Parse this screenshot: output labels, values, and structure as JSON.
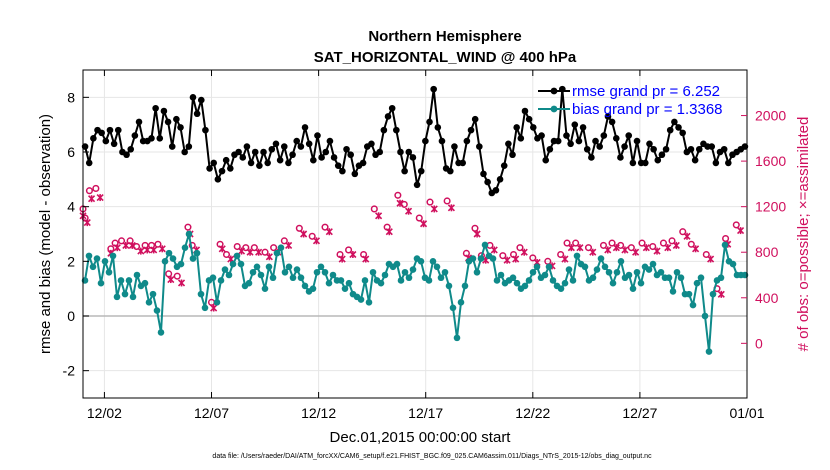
{
  "chart_data": {
    "type": "line",
    "title": "Northern Hemisphere",
    "subtitle": "SAT_HORIZONTAL_WIND @ 400 hPa",
    "xlabel": "Dec.01,2015 00:00:00 start",
    "ylabel": "rmse and bias (model - observation)",
    "y2label": "# of obs: o=possible; ×=assimilated",
    "footer": "data file: /Users/raeder/DAI/ATM_forcXX/CAM6_setup/f.e21.FHIST_BGC.f09_025.CAM6assim.011/Diags_NTrS_2015-12/obs_diag_output.nc",
    "xlim": [
      0,
      31
    ],
    "ylim": [
      -3,
      9
    ],
    "y2lim": [
      -480,
      2400
    ],
    "x_ticks": [
      1,
      6,
      11,
      16,
      21,
      26,
      31
    ],
    "x_tick_labels": [
      "12/02",
      "12/07",
      "12/12",
      "12/17",
      "12/22",
      "12/27",
      "01/01"
    ],
    "y_ticks": [
      -2,
      0,
      2,
      4,
      6,
      8
    ],
    "y2_ticks": [
      0,
      400,
      800,
      1200,
      1600,
      2000
    ],
    "reference_line": 0,
    "legend_position": "top-right",
    "colors": {
      "rmse": "#000000",
      "bias": "#0f8a8a",
      "obs": "#d0105e",
      "zero": "#b8b8b8",
      "grid": "#e6e6e6",
      "legend_text": "#0000ff"
    },
    "series": [
      {
        "name": "rmse",
        "legend": "rmse grand pr = 6.252",
        "values": [
          6.2,
          5.6,
          6.5,
          6.8,
          6.7,
          6.4,
          6.8,
          6.3,
          6.8,
          6.0,
          5.9,
          6.1,
          6.6,
          7.1,
          6.4,
          6.4,
          6.5,
          7.6,
          6.5,
          7.5,
          7.1,
          6.2,
          7.2,
          6.9,
          6.0,
          6.2,
          8.0,
          7.4,
          7.9,
          6.8,
          5.4,
          5.6,
          5.0,
          5.3,
          5.7,
          5.4,
          5.9,
          6.0,
          5.8,
          6.2,
          5.6,
          6.0,
          5.5,
          6.0,
          5.6,
          6.1,
          6.3,
          5.7,
          6.2,
          5.6,
          5.9,
          6.4,
          6.2,
          6.9,
          6.3,
          5.7,
          6.6,
          5.8,
          6.0,
          6.4,
          5.8,
          5.5,
          5.3,
          6.1,
          5.9,
          5.2,
          5.5,
          5.6,
          6.2,
          6.3,
          5.9,
          6.0,
          6.8,
          7.3,
          7.6,
          6.8,
          6.0,
          5.3,
          6.0,
          5.8,
          4.8,
          5.3,
          6.4,
          7.1,
          8.3,
          6.9,
          6.4,
          5.4,
          5.3,
          6.2,
          5.6,
          5.6,
          6.4,
          6.8,
          7.2,
          6.2,
          5.2,
          4.9,
          4.5,
          4.6,
          5.0,
          5.5,
          6.3,
          5.9,
          6.9,
          6.5,
          7.5,
          7.2,
          6.9,
          6.5,
          6.6,
          5.7,
          6.1,
          6.4,
          6.4,
          8.3,
          6.6,
          6.3,
          7.0,
          6.4,
          6.9,
          6.1,
          5.8,
          6.4,
          6.2,
          6.6,
          7.3,
          7.1,
          6.5,
          5.8,
          6.2,
          6.6,
          5.6,
          6.4,
          5.6,
          5.6,
          6.3,
          6.1,
          5.7,
          5.9,
          6.1,
          6.8,
          7.1,
          6.9,
          6.7,
          6.0,
          6.1,
          5.7,
          6.1,
          6.3,
          6.2,
          6.2,
          5.6,
          6.0,
          6.1,
          5.6,
          5.9,
          6.0,
          6.1,
          6.2
        ]
      },
      {
        "name": "bias",
        "legend": "bias grand pr = 1.3368",
        "values": [
          1.3,
          2.2,
          1.8,
          2.1,
          1.2,
          2.0,
          1.6,
          2.2,
          0.7,
          1.3,
          0.8,
          1.3,
          0.7,
          1.5,
          1.1,
          1.2,
          0.5,
          0.8,
          0.2,
          -0.6,
          2.0,
          2.3,
          2.1,
          1.8,
          1.9,
          2.5,
          3.0,
          2.1,
          2.3,
          0.8,
          0.3,
          1.3,
          1.4,
          0.5,
          1.3,
          1.7,
          1.5,
          1.9,
          2.2,
          1.9,
          1.1,
          1.2,
          1.6,
          1.8,
          1.5,
          1.0,
          1.8,
          1.4,
          2.3,
          2.5,
          1.6,
          1.8,
          1.4,
          1.7,
          1.4,
          1.1,
          0.9,
          1.0,
          1.6,
          1.8,
          1.6,
          1.2,
          1.5,
          1.3,
          1.3,
          1.0,
          1.2,
          0.8,
          0.7,
          0.6,
          1.3,
          0.5,
          1.6,
          1.3,
          1.2,
          1.5,
          1.9,
          1.8,
          1.9,
          1.3,
          1.6,
          1.4,
          1.7,
          2.1,
          2.0,
          1.4,
          1.3,
          2.0,
          1.8,
          1.4,
          1.6,
          1.1,
          0.3,
          -0.8,
          0.5,
          1.1,
          2.0,
          2.1,
          1.6,
          2.1,
          2.6,
          2.2,
          2.1,
          1.3,
          1.5,
          1.2,
          1.3,
          1.4,
          1.2,
          1.0,
          1.1,
          1.3,
          1.6,
          1.8,
          1.4,
          1.5,
          1.8,
          1.3,
          1.1,
          1.0,
          1.2,
          1.7,
          1.3,
          2.2,
          1.9,
          1.8,
          1.3,
          1.4,
          1.7,
          2.1,
          1.8,
          1.6,
          1.2,
          1.6,
          2.0,
          1.4,
          1.5,
          1.0,
          1.6,
          1.2,
          1.8,
          1.7,
          1.9,
          1.5,
          1.6,
          1.4,
          1.4,
          0.9,
          1.6,
          1.4,
          0.8,
          0.8,
          0.4,
          1.2,
          1.4,
          0.0,
          -1.3,
          0.8,
          1.3,
          1.4,
          2.6,
          2.0,
          1.9,
          1.5,
          1.5,
          1.5
        ]
      }
    ],
    "obs_possible": {
      "times": [
        0.0,
        0.1,
        0.3,
        0.6,
        1.3,
        1.5,
        1.8,
        2.2,
        2.5,
        2.9,
        3.2,
        3.5,
        4.0,
        4.4,
        4.9,
        5.1,
        6.0,
        6.4,
        6.7,
        7.2,
        7.6,
        8.0,
        8.5,
        8.9,
        9.4,
        10.1,
        10.7,
        11.3,
        12.0,
        12.4,
        13.1,
        13.6,
        14.2,
        14.7,
        15.0,
        15.7,
        16.2,
        17.0,
        17.9,
        18.3,
        18.6,
        19.0,
        19.6,
        20.1,
        20.4,
        21.0,
        21.7,
        22.3,
        22.6,
        23.0,
        23.6,
        24.3,
        24.7,
        25.1,
        25.6,
        26.1,
        26.6,
        27.1,
        27.5,
        28.0,
        28.4,
        29.1,
        29.6,
        30.0,
        30.5
      ],
      "counts": [
        1180,
        1100,
        1340,
        1360,
        830,
        880,
        900,
        900,
        850,
        860,
        860,
        870,
        610,
        590,
        1020,
        860,
        360,
        870,
        780,
        850,
        840,
        840,
        800,
        840,
        900,
        1010,
        940,
        1020,
        780,
        820,
        780,
        1180,
        1020,
        1300,
        1220,
        1100,
        1240,
        1250,
        790,
        1010,
        770,
        860,
        770,
        780,
        840,
        750,
        720,
        780,
        880,
        880,
        840,
        860,
        880,
        860,
        840,
        880,
        850,
        880,
        900,
        980,
        870,
        780,
        480,
        920,
        1040
      ]
    },
    "obs_assimilated": {
      "times": [
        0.0,
        0.2,
        0.4,
        0.8,
        1.3,
        1.6,
        2.0,
        2.3,
        2.7,
        3.0,
        3.3,
        3.7,
        4.1,
        4.6,
        5.0,
        5.3,
        6.1,
        6.5,
        6.9,
        7.4,
        7.8,
        8.2,
        8.7,
        9.1,
        9.6,
        10.3,
        10.9,
        11.5,
        12.1,
        12.6,
        13.2,
        13.8,
        14.3,
        14.8,
        15.2,
        15.9,
        16.4,
        17.2,
        18.0,
        18.4,
        18.8,
        19.2,
        19.8,
        20.2,
        20.6,
        21.2,
        21.9,
        22.5,
        22.8,
        23.2,
        23.8,
        24.5,
        24.9,
        25.3,
        25.8,
        26.3,
        26.8,
        27.3,
        27.7,
        28.2,
        28.6,
        29.3,
        29.8,
        30.1,
        30.7
      ],
      "counts": [
        1120,
        1060,
        1270,
        1280,
        790,
        840,
        860,
        860,
        810,
        820,
        820,
        830,
        560,
        530,
        960,
        820,
        310,
        830,
        740,
        810,
        800,
        800,
        760,
        800,
        860,
        960,
        900,
        980,
        740,
        780,
        740,
        1120,
        980,
        1230,
        1160,
        1050,
        1180,
        1190,
        750,
        960,
        730,
        820,
        730,
        740,
        800,
        710,
        680,
        740,
        840,
        840,
        800,
        820,
        840,
        820,
        800,
        840,
        810,
        840,
        860,
        940,
        830,
        740,
        430,
        870,
        990
      ]
    }
  }
}
